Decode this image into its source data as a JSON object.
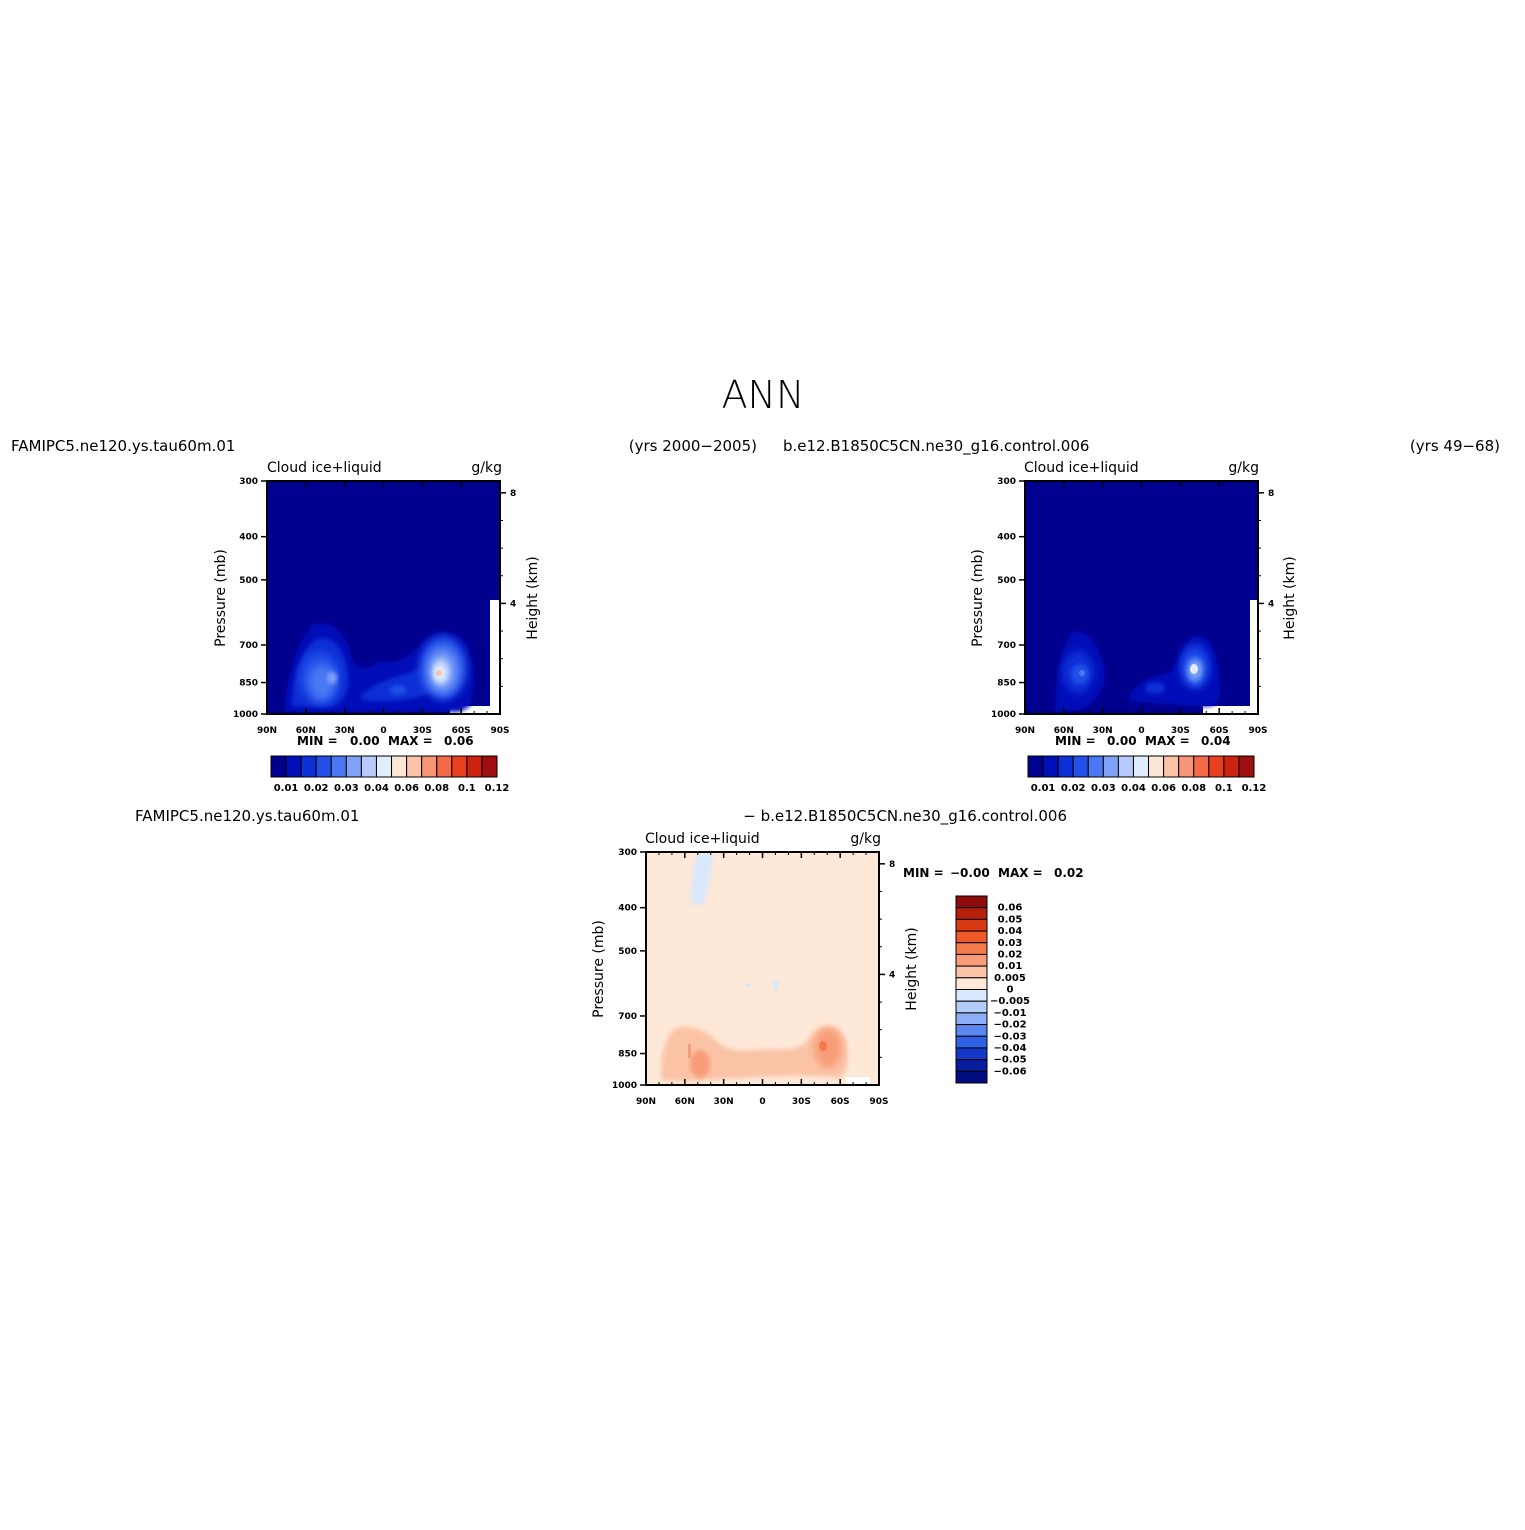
{
  "page": {
    "title": "ANN",
    "panel_a": {
      "case": "FAMIPC5.ne120.ys.tau60m.01",
      "years": "(yrs 2000−2005)",
      "min_label": "MIN =",
      "min_value": "0.00",
      "max_label": "MAX =",
      "max_value": "0.06"
    },
    "panel_b": {
      "case": "b.e12.B1850C5CN.ne30_g16.control.006",
      "years": "(yrs 49−68)",
      "min_label": "MIN =",
      "min_value": "0.00",
      "max_label": "MAX =",
      "max_value": "0.04"
    },
    "panel_diff": {
      "case_a": "FAMIPC5.ne120.ys.tau60m.01",
      "case_b": "− b.e12.B1850C5CN.ne30_g16.control.006",
      "min_label": "MIN =",
      "min_value": "−0.00",
      "max_label": "MAX =",
      "max_value": "0.02"
    },
    "common": {
      "variable_label": "Cloud ice+liquid",
      "units_label": "g/kg",
      "ylabel": "Pressure (mb)",
      "ylabel_right": "Height (km)"
    }
  },
  "chart_data": [
    {
      "type": "heatmap",
      "subtype": "filled contour (zonal mean latitude–pressure section)",
      "case": "FAMIPC5.ne120.ys.tau60m.01",
      "title_left": "Cloud ice+liquid",
      "title_right": "g/kg",
      "ylabel": "Pressure (mb)",
      "ylabel_right": "Height (km)",
      "x_ticks": [
        "90N",
        "60N",
        "30N",
        "0",
        "30S",
        "60S",
        "90S"
      ],
      "x_tick_values": [
        90,
        60,
        30,
        0,
        -30,
        -60,
        -90
      ],
      "y_ticks": [
        "300",
        "400",
        "500",
        "700",
        "850",
        "1000"
      ],
      "y_tick_values": [
        300,
        400,
        500,
        700,
        850,
        1000
      ],
      "y_scale": "log-pressure, reversed",
      "y_right_ticks": [
        "8",
        "4"
      ],
      "y_right_tick_values": [
        8,
        4
      ],
      "contour_levels": [
        0.01,
        0.02,
        0.03,
        0.04,
        0.06,
        0.08,
        0.1,
        0.12
      ],
      "colorbar_labels": [
        "0.01",
        "0.02",
        "0.03",
        "0.04",
        "0.06",
        "0.08",
        "0.1",
        "0.12"
      ],
      "colorbar_colors": [
        "#00008f",
        "#0010b8",
        "#0d2fd6",
        "#2350e8",
        "#4a78f2",
        "#7fa2f7",
        "#b6cbfb",
        "#e1ecfd",
        "#fde6d4",
        "#fcc2a6",
        "#f99577",
        "#f46a48",
        "#e8401f",
        "#cc2410",
        "#9f0e0e"
      ],
      "min": 0.0,
      "max": 0.06,
      "features": [
        {
          "lat": 50,
          "pressure_mb": 870,
          "value": 0.03
        },
        {
          "lat": -42,
          "pressure_mb": 860,
          "value": 0.06
        }
      ]
    },
    {
      "type": "heatmap",
      "subtype": "filled contour (zonal mean latitude–pressure section)",
      "case": "b.e12.B1850C5CN.ne30_g16.control.006",
      "title_left": "Cloud ice+liquid",
      "title_right": "g/kg",
      "ylabel": "Pressure (mb)",
      "ylabel_right": "Height (km)",
      "x_ticks": [
        "90N",
        "60N",
        "30N",
        "0",
        "30S",
        "60S",
        "90S"
      ],
      "x_tick_values": [
        90,
        60,
        30,
        0,
        -30,
        -60,
        -90
      ],
      "y_ticks": [
        "300",
        "400",
        "500",
        "700",
        "850",
        "1000"
      ],
      "y_tick_values": [
        300,
        400,
        500,
        700,
        850,
        1000
      ],
      "y_scale": "log-pressure, reversed",
      "y_right_ticks": [
        "8",
        "4"
      ],
      "y_right_tick_values": [
        8,
        4
      ],
      "contour_levels": [
        0.01,
        0.02,
        0.03,
        0.04,
        0.06,
        0.08,
        0.1,
        0.12
      ],
      "colorbar_labels": [
        "0.01",
        "0.02",
        "0.03",
        "0.04",
        "0.06",
        "0.08",
        "0.1",
        "0.12"
      ],
      "colorbar_colors": [
        "#00008f",
        "#0010b8",
        "#0d2fd6",
        "#2350e8",
        "#4a78f2",
        "#7fa2f7",
        "#b6cbfb",
        "#e1ecfd",
        "#fde6d4",
        "#fcc2a6",
        "#f99577",
        "#f46a48",
        "#e8401f",
        "#cc2410",
        "#9f0e0e"
      ],
      "min": 0.0,
      "max": 0.04,
      "features": [
        {
          "lat": 55,
          "pressure_mb": 870,
          "value": 0.02
        },
        {
          "lat": -42,
          "pressure_mb": 860,
          "value": 0.04
        }
      ]
    },
    {
      "type": "heatmap",
      "subtype": "filled contour difference (zonal mean latitude–pressure section)",
      "case": "FAMIPC5.ne120.ys.tau60m.01 − b.e12.B1850C5CN.ne30_g16.control.006",
      "title_left": "Cloud ice+liquid",
      "title_right": "g/kg",
      "ylabel": "Pressure (mb)",
      "ylabel_right": "Height (km)",
      "x_ticks": [
        "90N",
        "60N",
        "30N",
        "0",
        "30S",
        "60S",
        "90S"
      ],
      "x_tick_values": [
        90,
        60,
        30,
        0,
        -30,
        -60,
        -90
      ],
      "y_ticks": [
        "300",
        "400",
        "500",
        "700",
        "850",
        "1000"
      ],
      "y_tick_values": [
        300,
        400,
        500,
        700,
        850,
        1000
      ],
      "y_scale": "log-pressure, reversed",
      "y_right_ticks": [
        "8",
        "4"
      ],
      "y_right_tick_values": [
        8,
        4
      ],
      "contour_levels": [
        -0.06,
        -0.05,
        -0.04,
        -0.03,
        -0.02,
        -0.01,
        -0.005,
        0,
        0.005,
        0.01,
        0.02,
        0.03,
        0.04,
        0.05,
        0.06
      ],
      "colorbar_labels": [
        "0.06",
        "0.05",
        "0.04",
        "0.03",
        "0.02",
        "0.01",
        "0.005",
        "0",
        "−0.005",
        "−0.01",
        "−0.02",
        "−0.03",
        "−0.04",
        "−0.05",
        "−0.06"
      ],
      "colorbar_colors": [
        "#8f0a0a",
        "#b5200e",
        "#d83a16",
        "#ee5a2a",
        "#f47a4c",
        "#f89c78",
        "#fbc3a6",
        "#fee8d7",
        "#d9e8fc",
        "#b3cdf9",
        "#8baef6",
        "#5a88f0",
        "#2f62e6",
        "#1438c8",
        "#0a1c9e",
        "#000c80"
      ],
      "min": -0.0,
      "max": 0.02,
      "features": [
        {
          "lat": 55,
          "pressure_mb": 880,
          "value": 0.01
        },
        {
          "lat": -42,
          "pressure_mb": 860,
          "value": 0.02
        },
        {
          "lat": 55,
          "pressure_mb": 360,
          "value": -0.005
        }
      ]
    }
  ]
}
